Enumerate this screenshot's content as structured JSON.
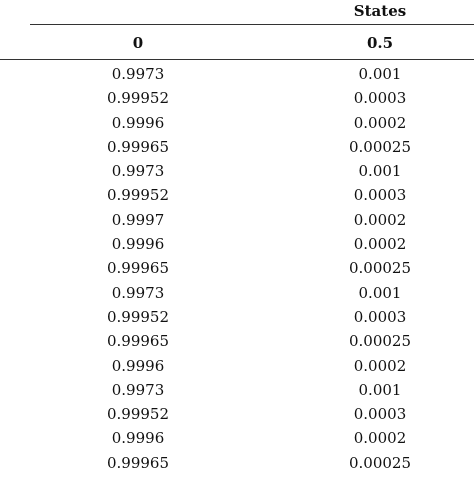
{
  "table": {
    "group_header": "States",
    "columns": [
      "0",
      "0.5"
    ],
    "rows": [
      [
        "0.9973",
        "0.001"
      ],
      [
        "0.99952",
        "0.0003"
      ],
      [
        "0.9996",
        "0.0002"
      ],
      [
        "0.99965",
        "0.00025"
      ],
      [
        "0.9973",
        "0.001"
      ],
      [
        "0.99952",
        "0.0003"
      ],
      [
        "0.9997",
        "0.0002"
      ],
      [
        "0.9996",
        "0.0002"
      ],
      [
        "0.99965",
        "0.00025"
      ],
      [
        "0.9973",
        "0.001"
      ],
      [
        "0.99952",
        "0.0003"
      ],
      [
        "0.99965",
        "0.00025"
      ],
      [
        "0.9996",
        "0.0002"
      ],
      [
        "0.9973",
        "0.001"
      ],
      [
        "0.99952",
        "0.0003"
      ],
      [
        "0.9996",
        "0.0002"
      ],
      [
        "0.99965",
        "0.00025"
      ]
    ]
  }
}
